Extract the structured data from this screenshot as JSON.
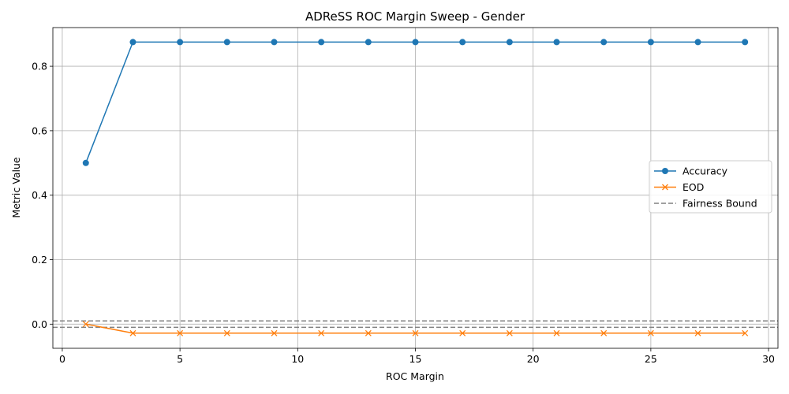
{
  "chart_data": {
    "type": "line",
    "title": "ADReSS ROC Margin Sweep - Gender",
    "xlabel": "ROC Margin",
    "ylabel": "Metric Value",
    "xlim": [
      -0.4,
      30.4
    ],
    "ylim": [
      -0.075,
      0.92
    ],
    "xticks": [
      0,
      5,
      10,
      15,
      20,
      25,
      30
    ],
    "xtick_labels": [
      "0",
      "5",
      "10",
      "15",
      "20",
      "25",
      "30"
    ],
    "yticks": [
      0.0,
      0.2,
      0.4,
      0.6,
      0.8
    ],
    "ytick_labels": [
      "0.0",
      "0.2",
      "0.4",
      "0.6",
      "0.8"
    ],
    "grid": true,
    "legend_position": "center-right",
    "x": [
      1,
      3,
      5,
      7,
      9,
      11,
      13,
      15,
      17,
      19,
      21,
      23,
      25,
      27,
      29
    ],
    "series": [
      {
        "name": "Accuracy",
        "color": "#1f77b4",
        "marker": "circle",
        "values": [
          0.5,
          0.875,
          0.875,
          0.875,
          0.875,
          0.875,
          0.875,
          0.875,
          0.875,
          0.875,
          0.875,
          0.875,
          0.875,
          0.875,
          0.875
        ]
      },
      {
        "name": "EOD",
        "color": "#ff7f0e",
        "marker": "x",
        "values": [
          0.0,
          -0.028,
          -0.028,
          -0.028,
          -0.028,
          -0.028,
          -0.028,
          -0.028,
          -0.028,
          -0.028,
          -0.028,
          -0.028,
          -0.028,
          -0.028,
          -0.028
        ]
      }
    ],
    "reference_lines": [
      {
        "name": "Fairness Bound",
        "color": "#808080",
        "style": "dashed",
        "y": [
          0.01,
          -0.01
        ]
      }
    ]
  }
}
